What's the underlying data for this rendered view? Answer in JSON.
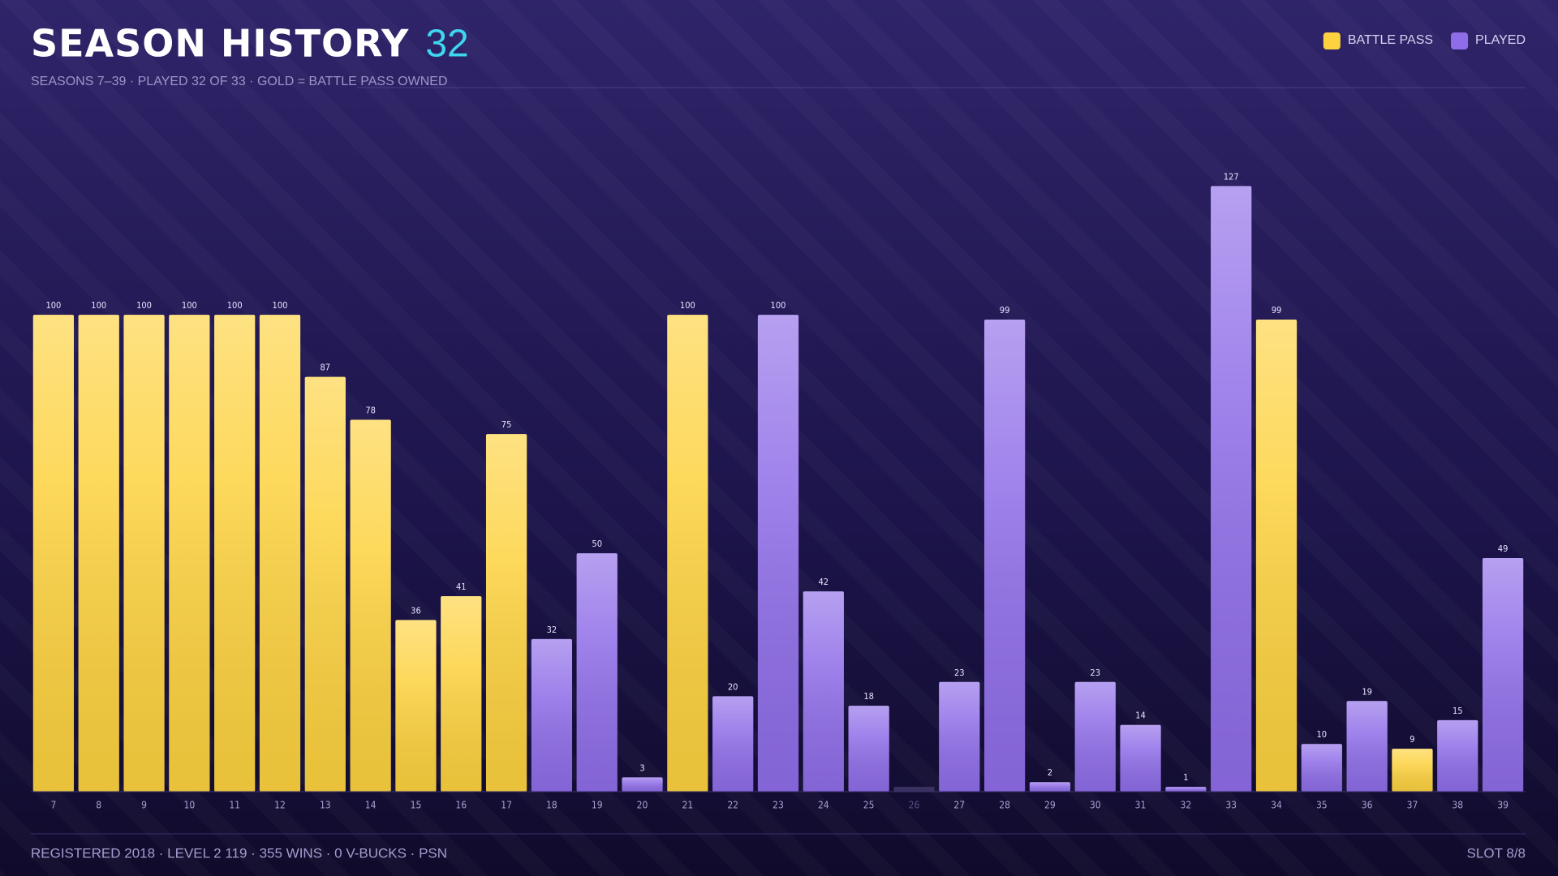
{
  "header": {
    "title": "SEASON HISTORY",
    "count": "32",
    "subtitle": "SEASONS 7–39 · PLAYED 32 OF 33 · GOLD = BATTLE PASS OWNED"
  },
  "chart_data": {
    "type": "bar",
    "categories": [
      "7",
      "8",
      "9",
      "10",
      "11",
      "12",
      "13",
      "14",
      "15",
      "16",
      "17",
      "18",
      "19",
      "20",
      "21",
      "22",
      "23",
      "24",
      "25",
      "26",
      "27",
      "28",
      "29",
      "30",
      "31",
      "32",
      "33",
      "34",
      "35",
      "36",
      "37",
      "38",
      "39"
    ],
    "series": [
      {
        "name": "BATTLE PASS",
        "color": "#fdd23f",
        "values": [
          100,
          100,
          100,
          100,
          100,
          100,
          87,
          78,
          36,
          41,
          75,
          null,
          null,
          null,
          100,
          null,
          null,
          null,
          null,
          null,
          null,
          null,
          null,
          null,
          null,
          null,
          null,
          99,
          null,
          null,
          9,
          null,
          null
        ]
      },
      {
        "name": "PLAYED",
        "color": "#8f6de8",
        "values": [
          null,
          null,
          null,
          null,
          null,
          null,
          null,
          null,
          null,
          null,
          null,
          32,
          50,
          3,
          null,
          20,
          100,
          42,
          18,
          null,
          23,
          99,
          2,
          23,
          14,
          1,
          127,
          null,
          10,
          19,
          null,
          15,
          49
        ]
      }
    ],
    "ylim": [
      0,
      140
    ],
    "legend": "top-right"
  },
  "footer": {
    "left": "REGISTERED 2018 · LEVEL 2 119 · 355 WINS · 0 V-BUCKS · PSN",
    "right": "SLOT 8/8"
  }
}
